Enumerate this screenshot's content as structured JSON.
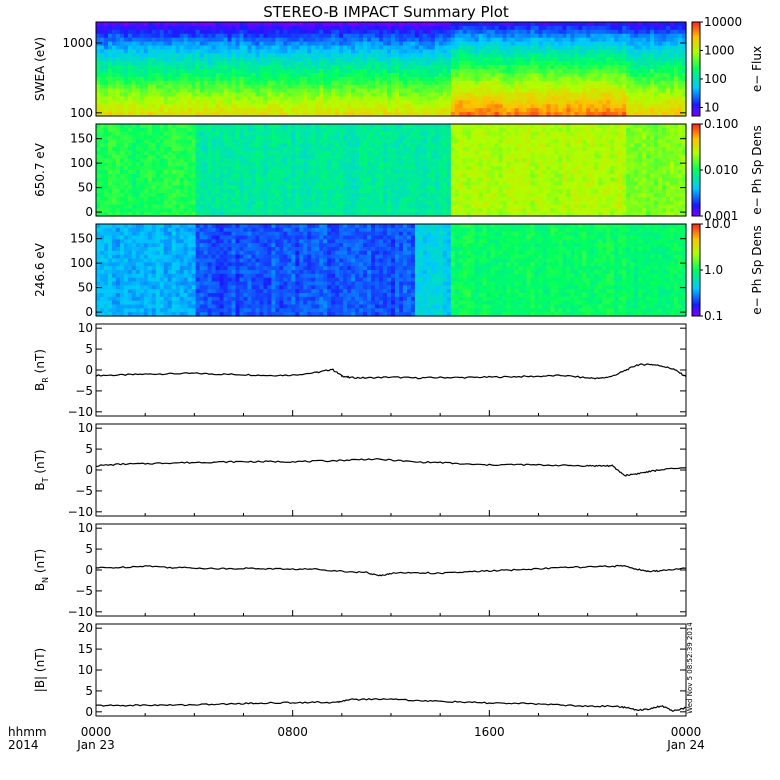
{
  "chart_data": {
    "title": "STEREO-B IMPACT Summary Plot",
    "time_axis": {
      "label_line1": "hhmm",
      "label_line2": "2014",
      "range_hours": [
        0,
        24
      ],
      "ticks": [
        {
          "hour": 0,
          "hhmm": "0000",
          "date": "Jan 23"
        },
        {
          "hour": 8,
          "hhmm": "0800",
          "date": ""
        },
        {
          "hour": 16,
          "hhmm": "1600",
          "date": ""
        },
        {
          "hour": 24,
          "hhmm": "0000",
          "date": "Jan 24"
        }
      ]
    },
    "stamp": "Wed Nov 5 08:52:39 2014",
    "spectrograms": [
      {
        "id": "swea",
        "type": "heatmap",
        "ylabel": "SWEA (eV)",
        "y_scale": "log",
        "ylim": [
          90,
          2000
        ],
        "y_ticks": [
          {
            "v": 100,
            "label": "100"
          },
          {
            "v": 1000,
            "label": "1000"
          }
        ],
        "colorbar_label": "e− Flux",
        "colorbar_scale": "log",
        "colorbar_range": [
          5,
          10000
        ],
        "colorbar_ticks": [
          {
            "v": 10,
            "label": "10"
          },
          {
            "v": 100,
            "label": "100"
          },
          {
            "v": 1000,
            "label": "1000"
          },
          {
            "v": 10000,
            "label": "10000"
          }
        ],
        "time_segments": [
          {
            "start": 0,
            "end": 14.5,
            "fraction_low": 0.78,
            "fraction_high": 0.0
          },
          {
            "start": 14.5,
            "end": 21.5,
            "fraction_low": 0.92,
            "fraction_high": 0.05
          },
          {
            "start": 21.5,
            "end": 24,
            "fraction_low": 0.82,
            "fraction_high": 0.05
          }
        ]
      },
      {
        "id": "pad650",
        "type": "heatmap",
        "ylabel": "650.7 eV",
        "y_scale": "linear",
        "ylim": [
          -8,
          180
        ],
        "y_ticks": [
          {
            "v": 0,
            "label": "0"
          },
          {
            "v": 50,
            "label": "50"
          },
          {
            "v": 100,
            "label": "100"
          },
          {
            "v": 150,
            "label": "150"
          }
        ],
        "colorbar_label": "e− Ph Sp Dens",
        "colorbar_scale": "log",
        "colorbar_range": [
          0.001,
          0.1
        ],
        "colorbar_ticks": [
          {
            "v": 0.001,
            "label": "0.001"
          },
          {
            "v": 0.01,
            "label": "0.010"
          },
          {
            "v": 0.1,
            "label": "0.100"
          }
        ],
        "time_segments": [
          {
            "start": 0,
            "end": 4,
            "level": 0.52
          },
          {
            "start": 4,
            "end": 14.5,
            "level": 0.42
          },
          {
            "start": 14.5,
            "end": 21.5,
            "level": 0.68
          },
          {
            "start": 21.5,
            "end": 24,
            "level": 0.62
          }
        ]
      },
      {
        "id": "pad246",
        "type": "heatmap",
        "ylabel": "246.6 eV",
        "y_scale": "linear",
        "ylim": [
          -8,
          180
        ],
        "y_ticks": [
          {
            "v": 0,
            "label": "0"
          },
          {
            "v": 50,
            "label": "50"
          },
          {
            "v": 100,
            "label": "100"
          },
          {
            "v": 150,
            "label": "150"
          }
        ],
        "colorbar_label": "e− Ph Sp Dens",
        "colorbar_scale": "log",
        "colorbar_range": [
          0.1,
          10
        ],
        "colorbar_ticks": [
          {
            "v": 0.1,
            "label": "0.1"
          },
          {
            "v": 1,
            "label": "1.0"
          },
          {
            "v": 10,
            "label": "10.0"
          }
        ],
        "time_segments": [
          {
            "start": 0,
            "end": 4,
            "level": 0.28
          },
          {
            "start": 4,
            "end": 13,
            "level": 0.18
          },
          {
            "start": 13,
            "end": 14.5,
            "level": 0.32
          },
          {
            "start": 14.5,
            "end": 21.5,
            "level": 0.5
          },
          {
            "start": 21.5,
            "end": 24,
            "level": 0.48
          }
        ]
      }
    ],
    "line_panels": [
      {
        "id": "br",
        "type": "line",
        "ylabel": "B",
        "ylabel_sub": "R",
        "ylabel_unit": "(nT)",
        "ylim": [
          -11,
          11
        ],
        "y_ticks": [
          {
            "v": -10,
            "label": "−10"
          },
          {
            "v": -5,
            "label": "−5"
          },
          {
            "v": 0,
            "label": "0"
          },
          {
            "v": 5,
            "label": "5"
          },
          {
            "v": 10,
            "label": "10"
          }
        ],
        "x": [
          0,
          1,
          2,
          3,
          4,
          5,
          6,
          7,
          8,
          9,
          9.6,
          10,
          10.3,
          11,
          12,
          13,
          14,
          15,
          16,
          17,
          18,
          19,
          20,
          20.5,
          21,
          21.5,
          22,
          22.5,
          23,
          23.5,
          24
        ],
        "values": [
          -1.3,
          -1.2,
          -1.0,
          -0.9,
          -0.8,
          -1.0,
          -1.1,
          -1.3,
          -1.2,
          -0.6,
          0.2,
          -1.4,
          -1.8,
          -1.9,
          -1.7,
          -1.9,
          -1.8,
          -1.8,
          -1.7,
          -1.6,
          -1.5,
          -1.3,
          -1.9,
          -2.0,
          -1.5,
          -0.2,
          1.2,
          1.4,
          1.0,
          0.2,
          -1.6
        ]
      },
      {
        "id": "bt",
        "type": "line",
        "ylabel": "B",
        "ylabel_sub": "T",
        "ylabel_unit": "(nT)",
        "ylim": [
          -11,
          11
        ],
        "y_ticks": [
          {
            "v": -10,
            "label": "−10"
          },
          {
            "v": -5,
            "label": "−5"
          },
          {
            "v": 0,
            "label": "0"
          },
          {
            "v": 5,
            "label": "5"
          },
          {
            "v": 10,
            "label": "10"
          }
        ],
        "x": [
          0,
          1,
          2,
          3,
          4,
          5,
          6,
          7,
          8,
          9,
          10,
          11,
          12,
          13,
          14,
          15,
          16,
          17,
          18,
          19,
          20,
          20.5,
          21,
          21.5,
          22,
          22.5,
          23,
          24
        ],
        "values": [
          1.0,
          1.4,
          1.5,
          1.7,
          1.8,
          1.9,
          2.0,
          2.0,
          2.0,
          2.1,
          2.3,
          2.6,
          2.4,
          1.9,
          1.8,
          1.4,
          1.2,
          1.3,
          1.2,
          1.1,
          1.0,
          1.0,
          1.0,
          -1.3,
          -0.9,
          -0.4,
          0.1,
          0.5
        ]
      },
      {
        "id": "bn",
        "type": "line",
        "ylabel": "B",
        "ylabel_sub": "N",
        "ylabel_unit": "(nT)",
        "ylim": [
          -11,
          11
        ],
        "y_ticks": [
          {
            "v": -10,
            "label": "−10"
          },
          {
            "v": -5,
            "label": "−5"
          },
          {
            "v": 0,
            "label": "0"
          },
          {
            "v": 5,
            "label": "5"
          },
          {
            "v": 10,
            "label": "10"
          }
        ],
        "x": [
          0,
          1,
          2,
          3,
          4,
          5,
          6,
          7,
          8,
          9,
          10,
          11,
          11.5,
          12,
          13,
          14,
          15,
          16,
          17,
          18,
          19,
          20,
          21,
          21.5,
          22,
          22.5,
          23,
          24
        ],
        "values": [
          0.5,
          0.6,
          1.0,
          0.6,
          0.5,
          0.3,
          0.4,
          0.3,
          0.2,
          0.2,
          -0.3,
          -0.6,
          -1.4,
          -0.8,
          -0.6,
          -0.8,
          -0.5,
          -0.2,
          0.0,
          0.3,
          0.6,
          0.7,
          0.9,
          1.0,
          0.2,
          -0.4,
          -0.1,
          0.4
        ]
      },
      {
        "id": "bmag",
        "type": "line",
        "ylabel": "|B|",
        "ylabel_sub": "",
        "ylabel_unit": "(nT)",
        "ylim": [
          -1,
          21
        ],
        "y_ticks": [
          {
            "v": 0,
            "label": "0"
          },
          {
            "v": 5,
            "label": "5"
          },
          {
            "v": 10,
            "label": "10"
          },
          {
            "v": 15,
            "label": "15"
          },
          {
            "v": 20,
            "label": "20"
          }
        ],
        "x": [
          0,
          1,
          2,
          3,
          4,
          5,
          6,
          7,
          8,
          9,
          9.8,
          10.2,
          11,
          12,
          13,
          14,
          15,
          16,
          17,
          18,
          19,
          20,
          21,
          21.5,
          22,
          22.5,
          23,
          23.5,
          24
        ],
        "values": [
          1.5,
          1.5,
          1.6,
          1.6,
          1.7,
          1.8,
          2.0,
          2.1,
          2.2,
          2.3,
          2.2,
          2.9,
          3.0,
          3.1,
          2.7,
          2.5,
          2.3,
          2.1,
          2.0,
          1.9,
          1.6,
          1.3,
          1.4,
          1.1,
          0.4,
          0.7,
          1.4,
          0.2,
          1.0
        ]
      }
    ]
  }
}
